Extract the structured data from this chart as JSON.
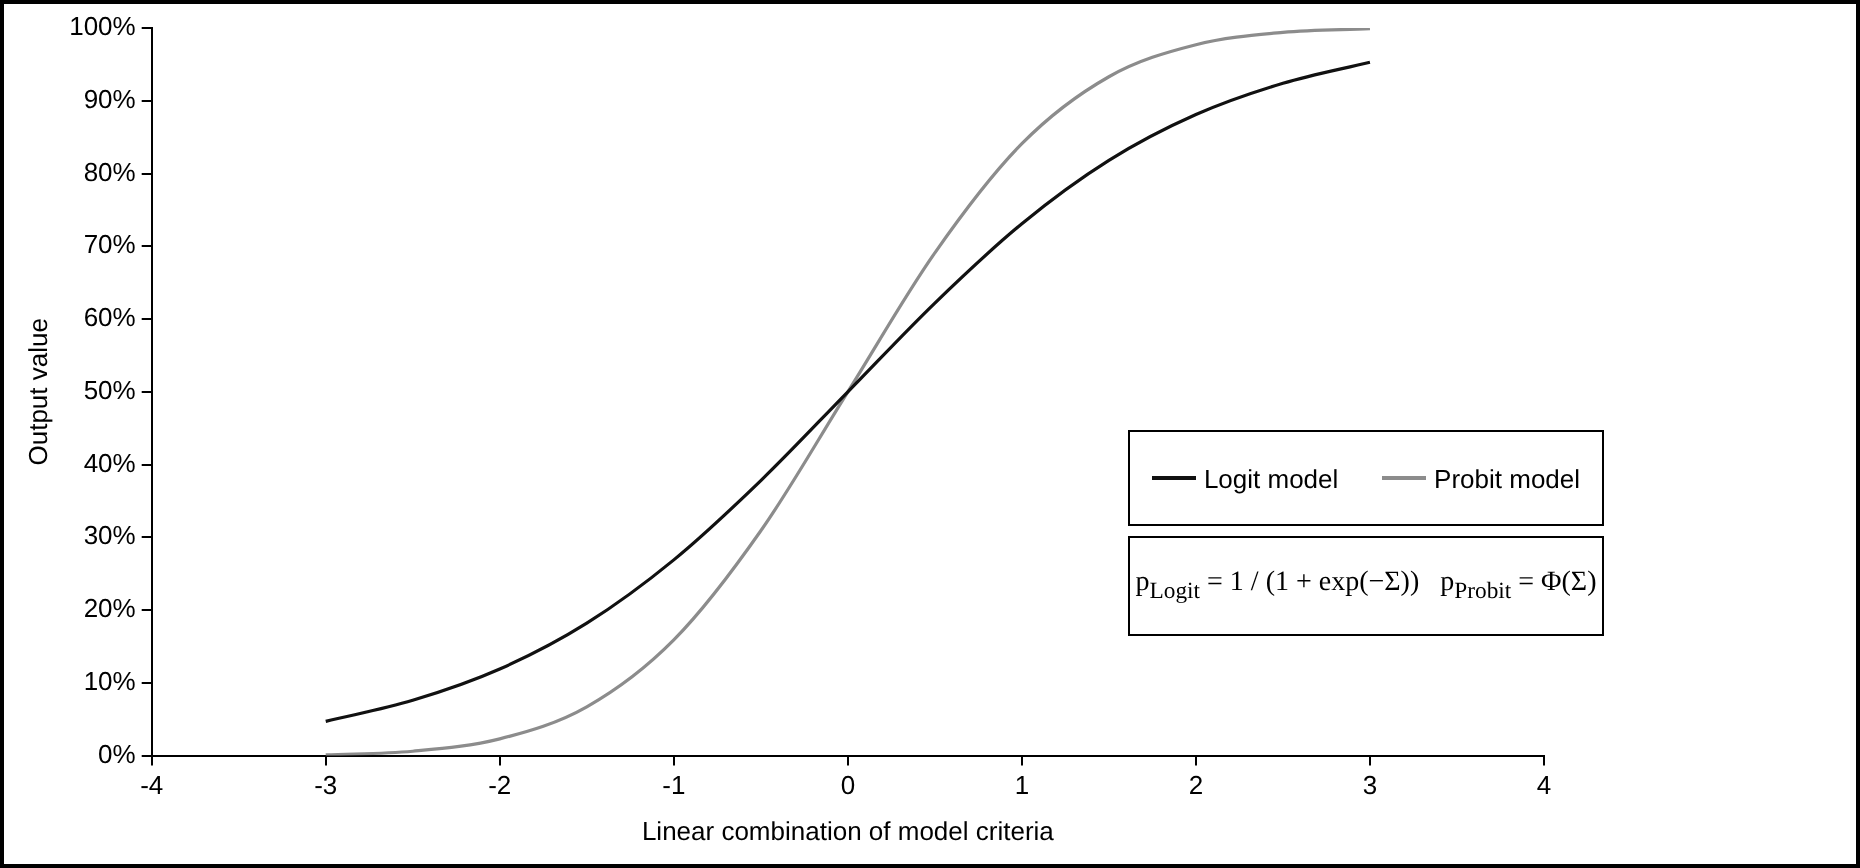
{
  "chart_data": {
    "type": "line",
    "xlabel": "Linear combination of model criteria",
    "ylabel": "Output value",
    "x": [
      -3,
      -2.5,
      -2,
      -1.5,
      -1,
      -0.5,
      0,
      0.5,
      1,
      1.5,
      2,
      2.5,
      3
    ],
    "series": [
      {
        "name": "Logit model",
        "color": "#111111",
        "values": [
          4.7,
          7.6,
          11.9,
          18.2,
          26.9,
          37.8,
          50,
          62.2,
          73.1,
          81.8,
          88.1,
          92.4,
          95.3
        ]
      },
      {
        "name": "Probit model",
        "color": "#8c8c8c",
        "values": [
          0.1,
          0.6,
          2.3,
          6.7,
          15.9,
          30.9,
          50,
          69.1,
          84.1,
          93.3,
          97.7,
          99.4,
          99.9
        ]
      }
    ],
    "xlim": [
      -4,
      4
    ],
    "xticks": [
      -4,
      -3,
      -2,
      -1,
      0,
      1,
      2,
      3,
      4
    ],
    "ylim": [
      0,
      100
    ],
    "yticks": [
      {
        "value": 0,
        "label": "0%"
      },
      {
        "value": 10,
        "label": "10%"
      },
      {
        "value": 20,
        "label": "20%"
      },
      {
        "value": 30,
        "label": "30%"
      },
      {
        "value": 40,
        "label": "40%"
      },
      {
        "value": 50,
        "label": "50%"
      },
      {
        "value": 60,
        "label": "60%"
      },
      {
        "value": 70,
        "label": "70%"
      },
      {
        "value": 80,
        "label": "80%"
      },
      {
        "value": 90,
        "label": "90%"
      },
      {
        "value": 100,
        "label": "100%"
      }
    ],
    "legend": "right",
    "marker": "none",
    "line_style": "solid",
    "annotations": [
      "p$_{Logit}$ = 1 / (1 + exp(−Σ))   p$_{Probit}$ = Φ(Σ)"
    ]
  }
}
